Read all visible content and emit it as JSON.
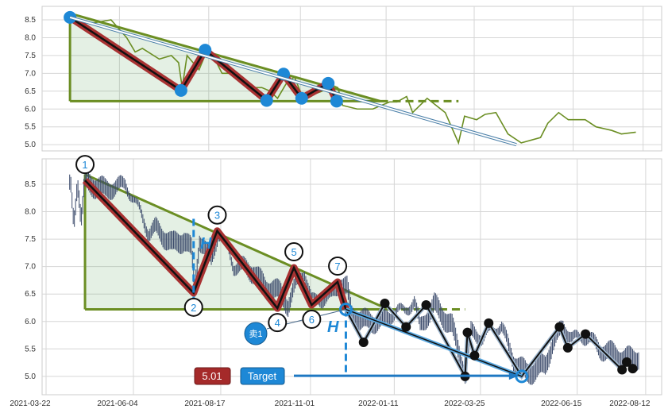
{
  "chart_data": {
    "type": "line",
    "title": "",
    "x_unit": "days since 2021-03-22",
    "x_ticks": [
      {
        "label": "2021-03-22",
        "day": 0
      },
      {
        "label": "2021-06-04",
        "day": 74
      },
      {
        "label": "2021-08-17",
        "day": 148
      },
      {
        "label": "2021-11-01",
        "day": 224
      },
      {
        "label": "2022-01-11",
        "day": 295
      },
      {
        "label": "2022-03-25",
        "day": 368
      },
      {
        "label": "2022-06-15",
        "day": 450
      },
      {
        "label": "2022-08-12",
        "day": 508
      }
    ],
    "top_panel": {
      "y_ticks": [
        "5.0",
        "5.5",
        "6.0",
        "6.5",
        "7.0",
        "7.5",
        "8.0",
        "8.5"
      ],
      "ylim": [
        4.85,
        8.9
      ]
    },
    "bottom_panel": {
      "y_ticks": [
        "5.0",
        "5.5",
        "6.0",
        "6.5",
        "7.0",
        "7.5",
        "8.0",
        "8.5"
      ],
      "ylim": [
        4.75,
        8.9
      ]
    },
    "price_series": [
      [
        33,
        8.55
      ],
      [
        50,
        8.4
      ],
      [
        67,
        8.5
      ],
      [
        80,
        8.0
      ],
      [
        87,
        7.6
      ],
      [
        93,
        7.7
      ],
      [
        107,
        7.4
      ],
      [
        117,
        7.5
      ],
      [
        123,
        7.3
      ],
      [
        126,
        6.6
      ],
      [
        130,
        7.5
      ],
      [
        140,
        7.1
      ],
      [
        146,
        7.6
      ],
      [
        153,
        7.4
      ],
      [
        159,
        7.0
      ],
      [
        166,
        7.0
      ],
      [
        176,
        6.9
      ],
      [
        186,
        6.6
      ],
      [
        192,
        6.6
      ],
      [
        199,
        6.5
      ],
      [
        205,
        6.3
      ],
      [
        212,
        6.7
      ],
      [
        219,
        6.9
      ],
      [
        225,
        6.4
      ],
      [
        234,
        6.4
      ],
      [
        242,
        6.5
      ],
      [
        248,
        6.7
      ],
      [
        255,
        6.6
      ],
      [
        259,
        6.1
      ],
      [
        271,
        6.0
      ],
      [
        284,
        6.0
      ],
      [
        298,
        6.2
      ],
      [
        304,
        6.2
      ],
      [
        312,
        6.35
      ],
      [
        317,
        5.9
      ],
      [
        329,
        6.3
      ],
      [
        344,
        5.9
      ],
      [
        355,
        5.05
      ],
      [
        360,
        5.8
      ],
      [
        370,
        5.7
      ],
      [
        377,
        5.85
      ],
      [
        386,
        5.9
      ],
      [
        396,
        5.3
      ],
      [
        407,
        5.05
      ],
      [
        423,
        5.2
      ],
      [
        429,
        5.6
      ],
      [
        438,
        5.9
      ],
      [
        446,
        5.7
      ],
      [
        460,
        5.7
      ],
      [
        469,
        5.5
      ],
      [
        482,
        5.4
      ],
      [
        490,
        5.3
      ],
      [
        502,
        5.35
      ]
    ],
    "pattern": {
      "points": [
        [
          33,
          8.57
        ],
        [
          125,
          6.52
        ],
        [
          145,
          7.65
        ],
        [
          196,
          6.24
        ],
        [
          210,
          6.98
        ],
        [
          225,
          6.3
        ],
        [
          247,
          6.72
        ],
        [
          254,
          6.22
        ]
      ],
      "labels": [
        "1",
        "2",
        "3",
        "4",
        "5",
        "6",
        "7"
      ],
      "resistance": [
        [
          33,
          8.68
        ],
        [
          290,
          6.22
        ]
      ],
      "support_price": 6.22,
      "support_end_day": 290,
      "support_dashed_end_day": 355
    },
    "forecast_path": [
      [
        254,
        6.22
      ],
      [
        269,
        5.62
      ],
      [
        287,
        6.33
      ],
      [
        305,
        5.9
      ],
      [
        311,
        6.3
      ],
      [
        322,
        5.0
      ],
      [
        355,
        5.8
      ],
      [
        357,
        5.38
      ],
      [
        363,
        5.97
      ],
      [
        375,
        5.0
      ],
      [
        403,
        5.0
      ]
    ],
    "actual_path": [
      [
        254,
        6.22
      ],
      [
        269,
        5.62
      ],
      [
        287,
        6.33
      ],
      [
        305,
        5.9
      ],
      [
        322,
        6.3
      ],
      [
        355,
        5.0
      ],
      [
        357,
        5.8
      ],
      [
        363,
        5.38
      ],
      [
        375,
        5.97
      ],
      [
        403,
        5.0
      ],
      [
        435,
        5.9
      ],
      [
        442,
        5.52
      ],
      [
        457,
        5.77
      ],
      [
        488,
        5.12
      ],
      [
        492,
        5.26
      ],
      [
        497,
        5.14
      ]
    ],
    "annotations": {
      "height_label": "H",
      "sell_label": "卖1",
      "target_value": "5.01",
      "target_label": "Target",
      "target_price": 5.01,
      "target_day": 403
    },
    "colors": {
      "trend": "#6b8e23",
      "zigzag": "#a83232",
      "marker": "#1e88d6",
      "price": "#3b4a6b",
      "target_box": "#1e88d6",
      "value_box": "#a52a2a"
    }
  }
}
